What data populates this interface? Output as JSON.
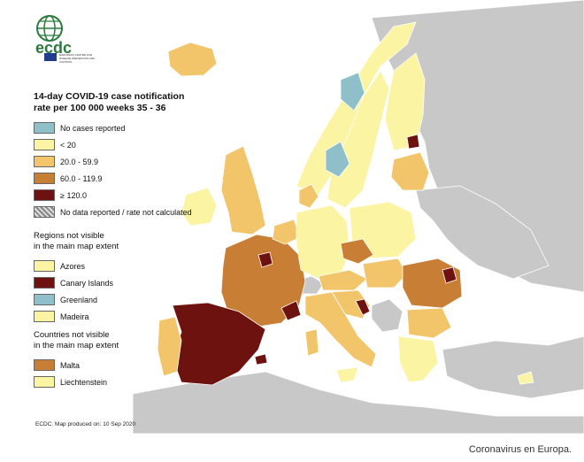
{
  "logo": {
    "text": "ecdc",
    "small_text": "EUROPEAN CENTRE FOR DISEASE PREVENTION AND CONTROL"
  },
  "legend": {
    "title_line1": "14-day COVID-19 case notification",
    "title_line2": "rate per 100 000 weeks 35 - 36",
    "items": [
      {
        "label": "No cases reported",
        "color": "#8fbfc9"
      },
      {
        "label": "< 20",
        "color": "#fbf4a3"
      },
      {
        "label": "20.0 - 59.9",
        "color": "#f2c56a"
      },
      {
        "label": "60.0 - 119.9",
        "color": "#c87f35"
      },
      {
        "label": "≥ 120.0",
        "color": "#6e1210"
      },
      {
        "label": "No data reported / rate not calculated",
        "color": "hatched"
      }
    ],
    "regions_title_line1": "Regions not visible",
    "regions_title_line2": "in the main map extent",
    "regions": [
      {
        "label": "Azores",
        "color": "#fbf4a3"
      },
      {
        "label": "Canary Islands",
        "color": "#6e1210"
      },
      {
        "label": "Greenland",
        "color": "#8fbfc9"
      },
      {
        "label": "Madeira",
        "color": "#fbf4a3"
      }
    ],
    "countries_title_line1": "Countries not visible",
    "countries_title_line2": "in the main map extent",
    "countries": [
      {
        "label": "Malta",
        "color": "#c87f35"
      },
      {
        "label": "Liechtenstein",
        "color": "#fbf4a3"
      }
    ]
  },
  "footer_note": "ECDC. Map produced on: 10 Sep 2020",
  "caption": "Coronavirus en Europa.",
  "colors": {
    "land_outside": "#c8c8c8",
    "sea": "#ffffff",
    "lt20": "#fbf4a3",
    "r20_60": "#f2c56a",
    "r60_120": "#c87f35",
    "r120": "#6e1210",
    "no_cases": "#8fbfc9"
  }
}
